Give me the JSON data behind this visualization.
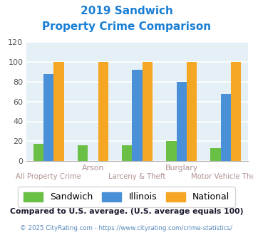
{
  "title_line1": "2019 Sandwich",
  "title_line2": "Property Crime Comparison",
  "title_color": "#1a7fd4",
  "x_labels_top": [
    "",
    "Arson",
    "",
    "Burglary",
    ""
  ],
  "x_labels_bot": [
    "All Property Crime",
    "",
    "Larceny & Theft",
    "",
    "Motor Vehicle Theft"
  ],
  "sandwich_values": [
    17,
    16,
    16,
    20,
    13
  ],
  "illinois_values": [
    88,
    0,
    92,
    80,
    68
  ],
  "national_values": [
    100,
    100,
    100,
    100,
    100
  ],
  "sandwich_color": "#6abf45",
  "illinois_color": "#4a90d9",
  "national_color": "#f5a623",
  "ylim": [
    0,
    120
  ],
  "yticks": [
    0,
    20,
    40,
    60,
    80,
    100,
    120
  ],
  "chart_bg": "#e4f0f5",
  "grid_color": "#ffffff",
  "legend_labels": [
    "Sandwich",
    "Illinois",
    "National"
  ],
  "footnote1": "Compared to U.S. average. (U.S. average equals 100)",
  "footnote2": "© 2025 CityRating.com - https://www.cityrating.com/crime-statistics/",
  "footnote1_color": "#1a1a2e",
  "footnote2_color": "#5588bb",
  "xlabel_top_color": "#b09090",
  "xlabel_bot_color": "#b09090"
}
